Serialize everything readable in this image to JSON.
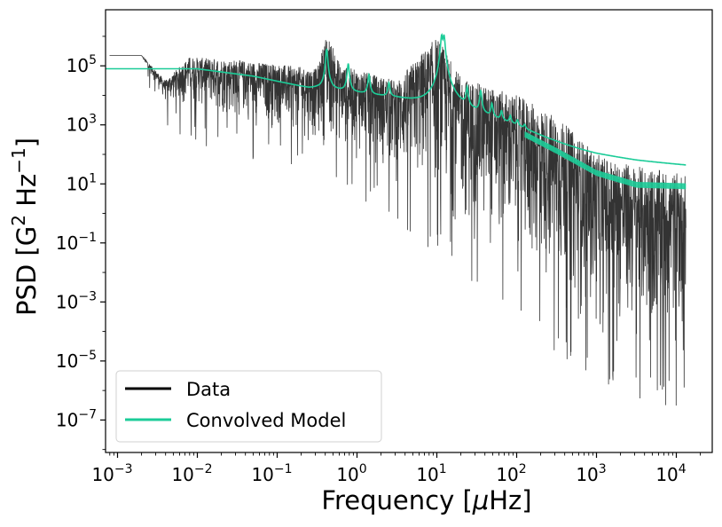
{
  "chart_data": {
    "type": "line",
    "xscale": "log",
    "yscale": "log",
    "xlabel": {
      "prefix": "Frequency [",
      "mu": "μ",
      "suffix": "Hz]"
    },
    "ylabel": {
      "prefix": "PSD [G",
      "sup1": "2",
      "mid": " Hz",
      "sup2": "−1",
      "suffix": "]"
    },
    "xlim_log10": [
      -3.15,
      4.45
    ],
    "ylim_log10": [
      -8.1,
      6.9
    ],
    "xticks": [
      {
        "base": "10",
        "exp": "−3",
        "log": -3
      },
      {
        "base": "10",
        "exp": "−2",
        "log": -2
      },
      {
        "base": "10",
        "exp": "−1",
        "log": -1
      },
      {
        "base": "10",
        "exp": "0",
        "log": 0
      },
      {
        "base": "10",
        "exp": "1",
        "log": 1
      },
      {
        "base": "10",
        "exp": "2",
        "log": 2
      },
      {
        "base": "10",
        "exp": "3",
        "log": 3
      },
      {
        "base": "10",
        "exp": "4",
        "log": 4
      }
    ],
    "yticks": [
      {
        "base": "10",
        "exp": "5",
        "log": 5
      },
      {
        "base": "10",
        "exp": "3",
        "log": 3
      },
      {
        "base": "10",
        "exp": "1",
        "log": 1
      },
      {
        "base": "10",
        "exp": "−1",
        "log": -1
      },
      {
        "base": "10",
        "exp": "−3",
        "log": -3
      },
      {
        "base": "10",
        "exp": "−5",
        "log": -5
      },
      {
        "base": "10",
        "exp": "−7",
        "log": -7
      }
    ],
    "series": [
      {
        "name": "Data",
        "color": "#000000",
        "description": "noisy power spectrum, upper envelope approx",
        "upper_envelope": [
          [
            -3.1,
            5.35
          ],
          [
            -2.7,
            5.35
          ],
          [
            -2.4,
            4.5
          ],
          [
            -2.1,
            5.3
          ],
          [
            -1.5,
            5.2
          ],
          [
            -0.5,
            4.9
          ],
          [
            -0.38,
            6.1
          ],
          [
            -0.2,
            5.0
          ],
          [
            0.5,
            4.5
          ],
          [
            1.0,
            6.0
          ],
          [
            1.3,
            4.6
          ],
          [
            2.0,
            4.0
          ],
          [
            2.5,
            3.3
          ],
          [
            3.0,
            2.0
          ],
          [
            3.5,
            1.6
          ],
          [
            4.12,
            1.3
          ]
        ],
        "lower_envelope": [
          [
            -3.1,
            5.35
          ],
          [
            -2.7,
            5.35
          ],
          [
            -2.4,
            3.6
          ],
          [
            -1.5,
            2.8
          ],
          [
            -1.0,
            2.5
          ],
          [
            0.0,
            1.5
          ],
          [
            1.0,
            -0.5
          ],
          [
            2.0,
            -2.7
          ],
          [
            3.0,
            -5.0
          ],
          [
            3.5,
            -5.5
          ],
          [
            4.12,
            -5.7
          ]
        ]
      },
      {
        "name": "Convolved Model",
        "color": "#1ccc98",
        "baseline": [
          [
            -3.15,
            4.9
          ],
          [
            -2.0,
            4.9
          ],
          [
            -1.3,
            4.65
          ],
          [
            -0.6,
            4.25
          ],
          [
            -0.5,
            4.25
          ],
          [
            0.5,
            3.9
          ],
          [
            1.0,
            3.6
          ],
          [
            1.5,
            3.2
          ],
          [
            2.0,
            2.8
          ],
          [
            2.5,
            2.1
          ],
          [
            3.0,
            1.35
          ],
          [
            3.5,
            0.95
          ],
          [
            4.12,
            0.9
          ]
        ],
        "peaks_log10_freq": [
          -0.38,
          -0.11,
          0.15,
          0.4,
          1.06,
          1.09,
          1.38,
          1.55,
          1.69,
          1.81,
          1.92,
          2.01,
          2.1
        ],
        "peaks_height_log10": [
          5.55,
          5.05,
          4.65,
          4.35,
          6.0,
          6.0,
          4.2,
          4.1,
          3.6,
          3.3,
          3.1,
          2.9,
          2.7
        ]
      }
    ],
    "legend": {
      "position": "lower-left",
      "entries": [
        {
          "label": "Data",
          "color": "#000000"
        },
        {
          "label": "Convolved Model",
          "color": "#1ccc98"
        }
      ]
    }
  }
}
